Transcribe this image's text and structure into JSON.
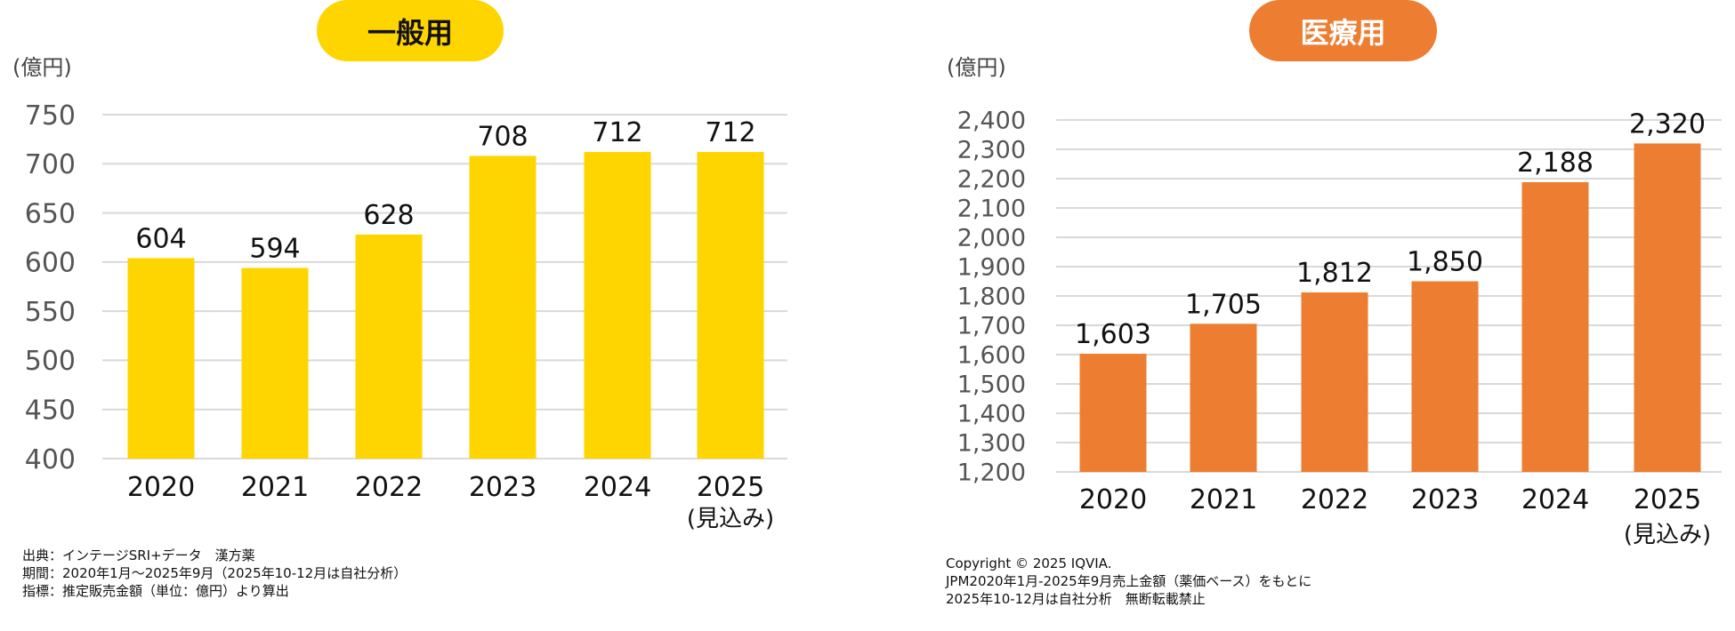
{
  "chart_data": [
    {
      "type": "bar",
      "title": "一般用",
      "ylabel": "(億円)",
      "categories": [
        "2020",
        "2021",
        "2022",
        "2023",
        "2024",
        "2025"
      ],
      "category_sublabels": [
        "",
        "",
        "",
        "",
        "",
        "(見込み)"
      ],
      "values": [
        604,
        594,
        628,
        708,
        712,
        712
      ],
      "ylim": [
        400,
        750
      ],
      "yticks": [
        400,
        450,
        500,
        550,
        600,
        650,
        700,
        750
      ],
      "tick_labels": [
        "400",
        "450",
        "500",
        "550",
        "600",
        "650",
        "700",
        "750"
      ],
      "value_labels": [
        "604",
        "594",
        "628",
        "708",
        "712",
        "712"
      ],
      "grid": true,
      "color": "#FFD500",
      "title_color": "#FFD500",
      "title_text_color": "#111111"
    },
    {
      "type": "bar",
      "title": "医療用",
      "ylabel": "(億円)",
      "categories": [
        "2020",
        "2021",
        "2022",
        "2023",
        "2024",
        "2025"
      ],
      "category_sublabels": [
        "",
        "",
        "",
        "",
        "",
        "(見込み)"
      ],
      "values": [
        1603,
        1705,
        1812,
        1850,
        2188,
        2320
      ],
      "ylim": [
        1200,
        2400
      ],
      "yticks": [
        1200,
        1300,
        1400,
        1500,
        1600,
        1700,
        1800,
        1900,
        2000,
        2100,
        2200,
        2300,
        2400
      ],
      "tick_labels": [
        "1,200",
        "1,300",
        "1,400",
        "1,500",
        "1,600",
        "1,700",
        "1,800",
        "1,900",
        "2,000",
        "2,100",
        "2,200",
        "2,300",
        "2,400"
      ],
      "value_labels": [
        "1,603",
        "1,705",
        "1,812",
        "1,850",
        "2,188",
        "2,320"
      ],
      "grid": true,
      "color": "#ED7D31",
      "title_color": "#ED7D31",
      "title_text_color": "#FFFFFF"
    }
  ],
  "notes": {
    "left": [
      "出典：インテージSRI+データ　漢方薬",
      "期間：2020年1月～2025年9月（2025年10-12月は自社分析）",
      "指標：推定販売金額（単位：億円）より算出"
    ],
    "right": [
      "Copyright © 2025 IQVIA.",
      "JPM2020年1月-2025年9月売上金額（薬価ベース）をもとに",
      "2025年10-12月は自社分析　無断転載禁止"
    ]
  }
}
